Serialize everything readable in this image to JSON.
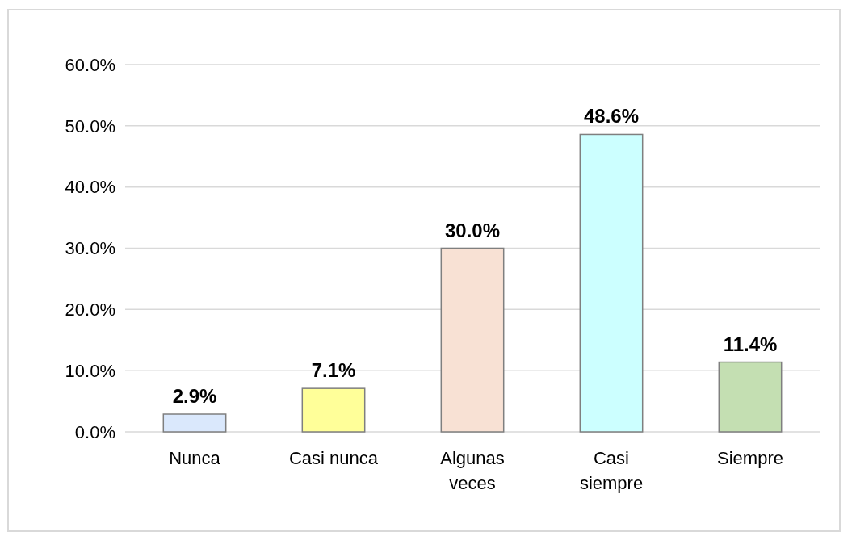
{
  "chart_data": {
    "type": "bar",
    "categories": [
      "Nunca",
      "Casi nunca",
      "Algunas veces",
      "Casi siempre",
      "Siempre"
    ],
    "values": [
      2.9,
      7.1,
      30.0,
      48.6,
      11.4
    ],
    "colors": [
      "#dae8fc",
      "#ffff99",
      "#f8e1d4",
      "#ccffff",
      "#c4dfb2"
    ],
    "value_labels": [
      "2.9%",
      "7.1%",
      "30.0%",
      "48.6%",
      "11.4%"
    ],
    "ylim": [
      0,
      60
    ],
    "yticks": [
      {
        "value": 0,
        "label": "0.0%"
      },
      {
        "value": 10,
        "label": "10.0%"
      },
      {
        "value": 20,
        "label": "20.0%"
      },
      {
        "value": 30,
        "label": "30.0%"
      },
      {
        "value": 40,
        "label": "40.0%"
      },
      {
        "value": 50,
        "label": "50.0%"
      },
      {
        "value": 60,
        "label": "60.0%"
      }
    ],
    "grid": "y"
  }
}
